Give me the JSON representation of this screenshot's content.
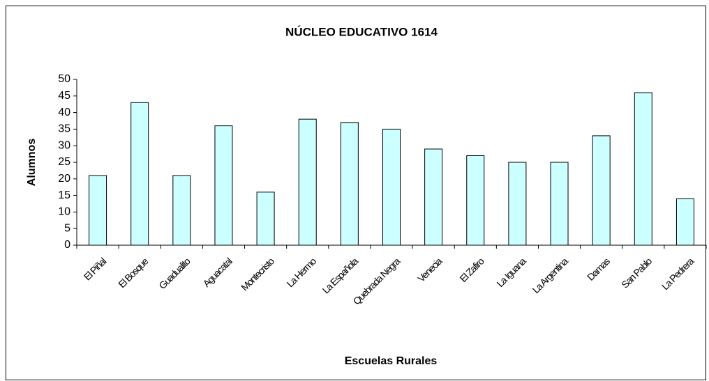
{
  "chart_data": {
    "type": "bar",
    "title": "NÚCLEO EDUCATIVO 1614",
    "x_label": "Escuelas Rurales",
    "y_label": "Alumnos",
    "categories": [
      "El Piñal",
      "El Bosque",
      "Guadualito",
      "Aguacatal",
      "Montecristo",
      "La Hermo",
      "La Española",
      "Quebrada Negra",
      "Venecia",
      "El Zafiro",
      "La Iguana",
      "La Argentina",
      "Damas",
      "San Pablo",
      "La Pedrera"
    ],
    "values": [
      21,
      43,
      21,
      36,
      16,
      38,
      37,
      35,
      29,
      27,
      25,
      25,
      33,
      46,
      14
    ],
    "color": "#ccffff",
    "ylim": [
      0,
      50
    ],
    "yticks": [
      0,
      5,
      10,
      15,
      20,
      25,
      30,
      35,
      40,
      45,
      50
    ],
    "grid": false
  }
}
